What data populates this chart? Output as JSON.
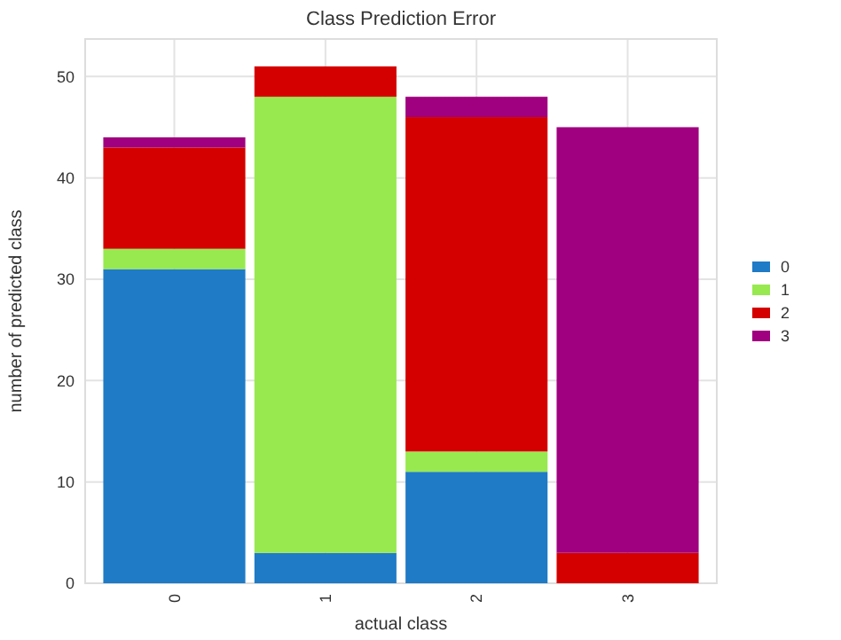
{
  "chart_data": {
    "type": "bar",
    "title": "Class Prediction Error",
    "xlabel": "actual class",
    "ylabel": "number of predicted class",
    "categories": [
      "0",
      "1",
      "2",
      "3"
    ],
    "stacked": true,
    "series": [
      {
        "name": "0",
        "color": "#1f7bc6",
        "values": [
          31,
          3,
          11,
          0
        ]
      },
      {
        "name": "1",
        "color": "#97e94f",
        "values": [
          2,
          45,
          2,
          0
        ]
      },
      {
        "name": "2",
        "color": "#d40000",
        "values": [
          10,
          3,
          33,
          3
        ]
      },
      {
        "name": "3",
        "color": "#a0007f",
        "values": [
          1,
          0,
          2,
          42
        ]
      }
    ],
    "ylim": [
      0,
      53.7
    ],
    "yticks": [
      0,
      10,
      20,
      30,
      40,
      50
    ],
    "grid": true,
    "legend": "right"
  }
}
